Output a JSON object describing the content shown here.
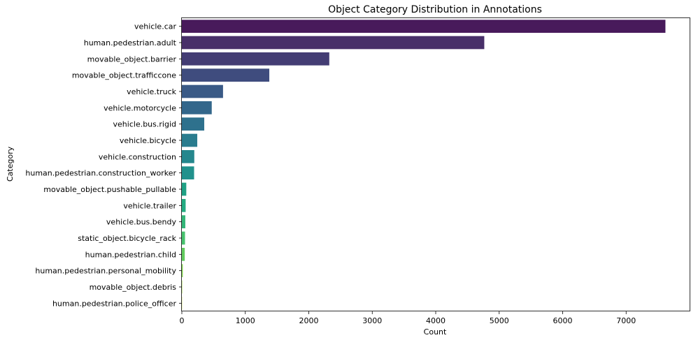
{
  "chart_data": {
    "type": "bar",
    "orientation": "horizontal",
    "title": "Object Category Distribution in Annotations",
    "xlabel": "Count",
    "ylabel": "Category",
    "xlim": [
      0,
      8000
    ],
    "xticks": [
      0,
      1000,
      2000,
      3000,
      4000,
      5000,
      6000,
      7000
    ],
    "grid": false,
    "categories": [
      "vehicle.car",
      "human.pedestrian.adult",
      "movable_object.barrier",
      "movable_object.trafficcone",
      "vehicle.truck",
      "vehicle.motorcycle",
      "vehicle.bus.rigid",
      "vehicle.bicycle",
      "vehicle.construction",
      "human.pedestrian.construction_worker",
      "movable_object.pushable_pullable",
      "vehicle.trailer",
      "vehicle.bus.bendy",
      "static_object.bicycle_rack",
      "human.pedestrian.child",
      "human.pedestrian.personal_mobility",
      "movable_object.debris",
      "human.pedestrian.police_officer"
    ],
    "values": [
      7619,
      4765,
      2323,
      1378,
      649,
      471,
      353,
      243,
      196,
      193,
      70,
      60,
      55,
      50,
      46,
      15,
      5,
      3
    ],
    "colors": [
      "#481a5b",
      "#482f69",
      "#443d74",
      "#3f4c7e",
      "#3a5a86",
      "#33678b",
      "#2e718d",
      "#2a7c8e",
      "#25878d",
      "#21918c",
      "#20a185",
      "#25ab82",
      "#34b679",
      "#48c16e",
      "#62ca5e",
      "#82d34e",
      "#a2da37",
      "#c4e022"
    ]
  }
}
